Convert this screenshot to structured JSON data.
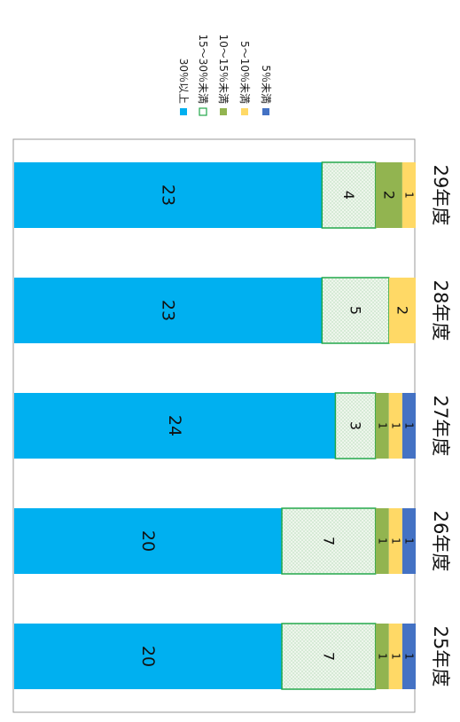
{
  "chart_data": {
    "type": "bar",
    "stacked": true,
    "orientation": "rotated-90-clockwise",
    "categories": [
      "25年度",
      "26年度",
      "27年度",
      "28年度",
      "29年度"
    ],
    "series": [
      {
        "name": "30％以上",
        "color": "#00B0F0",
        "pattern": "solid",
        "values": [
          20,
          20,
          24,
          23,
          23
        ]
      },
      {
        "name": "15～30％未満",
        "color": "#EAF4EA",
        "border": "#22A74A",
        "pattern": "dotted",
        "values": [
          7,
          7,
          3,
          5,
          4
        ]
      },
      {
        "name": "10～15％未満",
        "color": "#92B450",
        "pattern": "solid",
        "values": [
          1,
          1,
          1,
          0,
          2
        ]
      },
      {
        "name": "5～10％未満",
        "color": "#FFD966",
        "pattern": "solid",
        "values": [
          1,
          1,
          1,
          2,
          1
        ]
      },
      {
        "name": "5％未満",
        "color": "#4472C4",
        "pattern": "solid",
        "values": [
          1,
          1,
          1,
          0,
          0
        ]
      }
    ],
    "value_max": 30,
    "legend_position": "top",
    "data_labels": true,
    "grid": false
  }
}
